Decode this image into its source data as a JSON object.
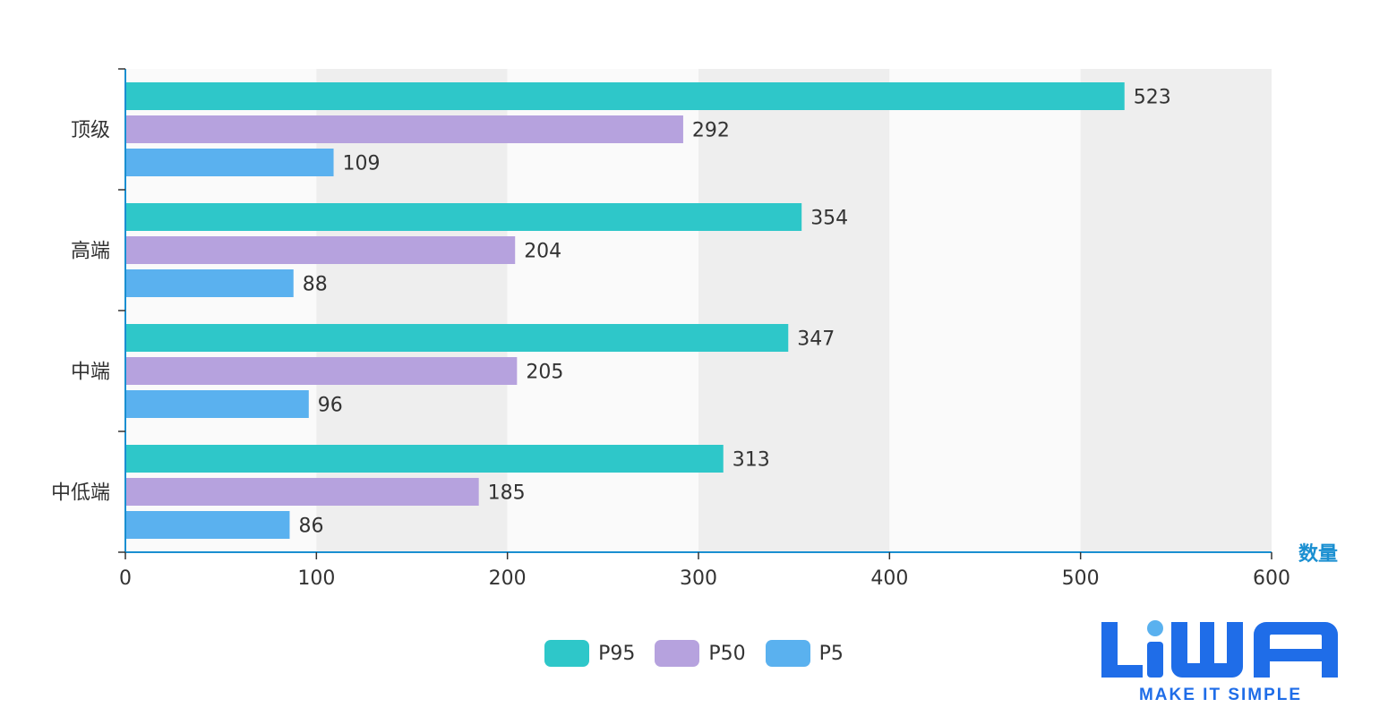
{
  "chart_data": {
    "type": "bar",
    "orientation": "horizontal",
    "categories": [
      "顶级",
      "高端",
      "中端",
      "中低端"
    ],
    "series": [
      {
        "name": "P95",
        "color": "#2ec7c9",
        "values": [
          523,
          354,
          347,
          313
        ]
      },
      {
        "name": "P50",
        "color": "#b6a2de",
        "values": [
          292,
          204,
          205,
          185
        ]
      },
      {
        "name": "P5",
        "color": "#5ab1ef",
        "values": [
          109,
          88,
          96,
          86
        ]
      }
    ],
    "xlabel": "数量",
    "ylabel": "",
    "xlim": [
      0,
      600
    ],
    "xticks": [
      "0",
      "100",
      "200",
      "300",
      "400",
      "500",
      "600"
    ],
    "grid": "alternating-bands",
    "legend_position": "bottom-center"
  },
  "logo": {
    "text": "LiWA",
    "tagline": "MAKE IT SIMPLE",
    "color": "#1f6de8"
  },
  "colors": {
    "axis": "#1a8fd1",
    "band_light": "#fafafa",
    "band_dark": "#eeeeee"
  }
}
